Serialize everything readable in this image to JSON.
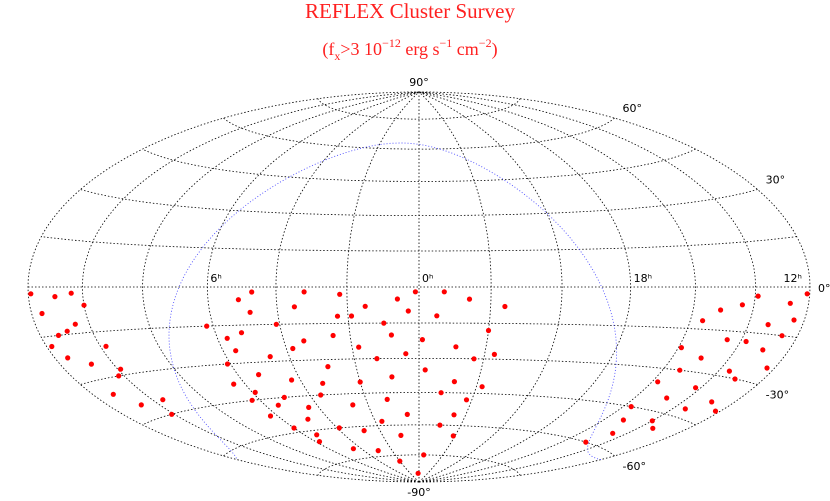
{
  "chart_data": {
    "type": "scatter",
    "projection": "hammer",
    "title": "REFLEX Cluster Survey",
    "subtitle": [
      "(f",
      "x",
      ">3 10",
      "−12",
      " erg s",
      "−1",
      " cm",
      "−2",
      ")"
    ],
    "color": "#ff0000",
    "title_color": "#ff2020",
    "grid": {
      "ra_step_hours": 2,
      "dec_step": 15,
      "color": "#000000"
    },
    "galactic_plane": {
      "color": "#5050ff"
    },
    "xticks": [
      {
        "value": 12,
        "label": "12ʰ"
      },
      {
        "value": 6,
        "label": "6ʰ"
      },
      {
        "value": 0,
        "label": "0ʰ"
      },
      {
        "value": 18,
        "label": "18ʰ"
      }
    ],
    "yticks": [
      {
        "value": 90,
        "label": "90°"
      },
      {
        "value": 60,
        "label": "60°"
      },
      {
        "value": 30,
        "label": "30°"
      },
      {
        "value": 0,
        "label": "0°"
      },
      {
        "value": -30,
        "label": "-30°"
      },
      {
        "value": -60,
        "label": "-60°"
      },
      {
        "value": -90,
        "label": "-90°"
      }
    ],
    "x": [
      0.1,
      0.3,
      0.6,
      0.8,
      1.0,
      1.3,
      1.5,
      1.8,
      2.0,
      2.3,
      2.6,
      2.9,
      3.2,
      3.4,
      3.6,
      3.9,
      4.1,
      4.3,
      4.6,
      4.9,
      5.1,
      5.3,
      5.5,
      5.7,
      5.9,
      6.1,
      6.3,
      6.4,
      5.8,
      4.5,
      3.0,
      2.0,
      1.0,
      0.5,
      23.8,
      23.5,
      23.2,
      22.9,
      22.6,
      22.3,
      22.0,
      21.8,
      21.6,
      23.0,
      22.5,
      22.1,
      23.6,
      0.2,
      1.2,
      2.5,
      3.5,
      4.8,
      5.4,
      6.2,
      0.9,
      1.7,
      2.2,
      3.8,
      4.4,
      5.0,
      23.9,
      23.3,
      22.8,
      22.2,
      21.7,
      0.4,
      1.9,
      2.8,
      3.3,
      4.7,
      5.6,
      6.0,
      6.3,
      5.2,
      11.9,
      11.6,
      11.3,
      11.0,
      10.8,
      10.5,
      10.2,
      10.0,
      9.8,
      9.6,
      11.5,
      11.2,
      10.7,
      10.4,
      9.9,
      11.8,
      10.9,
      10.1,
      12.1,
      12.4,
      12.7,
      13.0,
      13.3,
      13.6,
      13.9,
      14.2,
      14.5,
      14.8,
      15.1,
      15.4,
      15.7,
      15.9,
      12.3,
      12.9,
      13.5,
      14.0,
      14.6,
      15.2,
      12.6,
      13.1,
      13.8,
      14.4,
      15.0,
      15.6,
      12.2,
      13.4,
      14.9,
      15.8
    ],
    "values": [
      -2,
      -10,
      -5,
      -20,
      -15,
      -30,
      -8,
      -25,
      -40,
      -12,
      -50,
      -33,
      -2,
      -22,
      -45,
      -60,
      -15,
      -38,
      -28,
      -55,
      -5,
      -35,
      -48,
      -20,
      -42,
      -30,
      -52,
      -38,
      -65,
      -70,
      -72,
      -78,
      -65,
      -55,
      -35,
      -12,
      -45,
      -25,
      -5,
      -30,
      -18,
      -42,
      -8,
      -60,
      -55,
      -65,
      -75,
      -85,
      -48,
      -20,
      -8,
      -10,
      -62,
      -15,
      -38,
      -58,
      -3,
      -25,
      -50,
      -45,
      -22,
      -2,
      -40,
      -48,
      -28,
      -28,
      -12,
      -62,
      -40,
      -2,
      -25,
      -58,
      -45,
      -18,
      -2,
      -8,
      -15,
      -3,
      -25,
      -12,
      -30,
      -6,
      -20,
      -40,
      -22,
      -35,
      -40,
      -2,
      -28,
      -18,
      -14,
      -45,
      -2,
      -10,
      -5,
      -20,
      -12,
      -28,
      -3,
      -35,
      -18,
      -40,
      -8,
      -30,
      -45,
      -22,
      -25,
      -38,
      -42,
      -48,
      -55,
      -50,
      -15,
      -30,
      -18,
      -6,
      -25,
      -12,
      -40,
      -50,
      -60,
      -35
    ]
  }
}
